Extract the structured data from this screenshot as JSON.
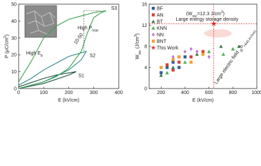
{
  "chart_data": [
    {
      "type": "line",
      "xlabel": [
        "E (kV/cm)"
      ],
      "ylabel": [
        "P (μC/cm",
        "2",
        ")"
      ],
      "xlim": [
        0,
        400
      ],
      "xticks": [
        0,
        100,
        200,
        300,
        400
      ],
      "ylim": [
        0,
        50
      ],
      "yticks": [
        0,
        10,
        20,
        30,
        40,
        50
      ],
      "annotations": {
        "high_pmax": [
          "High P",
          "max"
        ],
        "high_eb": [
          "High E",
          "b"
        ],
        "range": [
          "10-50"
        ]
      },
      "series": [
        {
          "name": "S1",
          "color": "#1b4d3e",
          "x": [
            0,
            100,
            200,
            230,
            150,
            100,
            0
          ],
          "values": [
            0,
            3,
            8,
            10,
            8,
            6,
            1
          ]
        },
        {
          "name": "S2",
          "color": "#2a8a8a",
          "x": [
            0,
            100,
            200,
            250,
            270,
            200,
            150,
            100,
            50,
            0
          ],
          "values": [
            0,
            4,
            11,
            17,
            22,
            19,
            15,
            11,
            6,
            2
          ]
        },
        {
          "name": "S3",
          "color": "#3aa04a",
          "x": [
            0,
            50,
            100,
            150,
            200,
            250,
            275,
            300,
            330,
            350,
            320,
            300,
            250,
            200,
            150,
            100,
            50,
            0
          ],
          "values": [
            0,
            2,
            4,
            7,
            12,
            22,
            33,
            42,
            45,
            46,
            45.5,
            45,
            43,
            41,
            37,
            30,
            16,
            4
          ]
        }
      ]
    },
    {
      "type": "scatter",
      "xlabel": [
        "E (kV/cm)"
      ],
      "ylabel": [
        "W",
        "rec",
        " (J/cm",
        "3",
        ")"
      ],
      "xlim": [
        100,
        1000
      ],
      "xticks": [
        200,
        400,
        600,
        800,
        1000
      ],
      "ylim": [
        0,
        16
      ],
      "yticks": [
        0,
        4,
        8,
        12,
        16
      ],
      "annotations": {
        "wrec": [
          "(W",
          "rec",
          "=12.3 J/cm",
          "3",
          ")"
        ],
        "large_density": [
          "Large energy storage density"
        ],
        "large_field": [
          "Large electric field ",
          "(E",
          "b",
          "=640 kV/cm)"
        ]
      },
      "series": [
        {
          "name": "BF",
          "color": "#2f5d9e",
          "marker": "square",
          "x": [
            200,
            250,
            300,
            350,
            400
          ],
          "values": [
            3,
            4,
            5,
            4,
            6
          ]
        },
        {
          "name": "AN",
          "color": "#d9403a",
          "marker": "square",
          "x": [
            250,
            300,
            350,
            450,
            550
          ],
          "values": [
            4.5,
            3.5,
            5,
            6,
            7
          ]
        },
        {
          "name": "BT",
          "color": "#3a7d44",
          "marker": "triangle",
          "x": [
            200,
            300,
            500,
            700,
            850
          ],
          "values": [
            2.5,
            4,
            6.5,
            8,
            8
          ]
        },
        {
          "name": "KNN",
          "color": "#4caf50",
          "marker": "triangle",
          "x": [
            250,
            400,
            600,
            720,
            800
          ],
          "values": [
            3,
            5,
            7,
            6.5,
            7.5
          ]
        },
        {
          "name": "NN",
          "color": "#c77ad8",
          "marker": "diamond",
          "x": [
            300,
            400,
            450,
            500,
            600
          ],
          "values": [
            6,
            7,
            7.5,
            7,
            6
          ]
        },
        {
          "name": "BNT",
          "color": "#f0a030",
          "marker": "square",
          "x": [
            200,
            300,
            350,
            450,
            550
          ],
          "values": [
            4,
            5.5,
            6,
            5,
            6.5
          ]
        },
        {
          "name": "This Work",
          "color": "#e02020",
          "marker": "star",
          "x": [
            640
          ],
          "values": [
            12.3
          ]
        }
      ]
    }
  ]
}
